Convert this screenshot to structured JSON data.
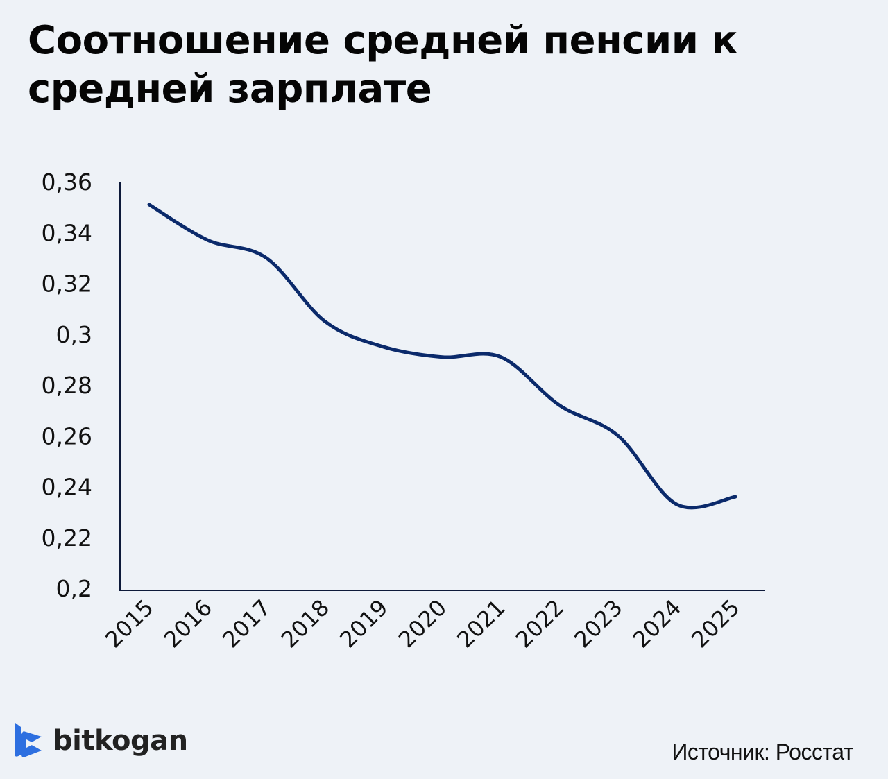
{
  "title": "Соотношение средней пенсии к средней зарплате",
  "source": "Источник: Росстат",
  "brand": {
    "name": "bitkogan",
    "icon": "bitkogan-logo-icon",
    "color": "#2d6fe0"
  },
  "colors": {
    "line": "#0b2a6b",
    "axis": "#0d1a3a",
    "background": "#eef2f7"
  },
  "chart_data": {
    "type": "line",
    "title": "Соотношение средней пенсии к средней зарплате",
    "xlabel": "",
    "ylabel": "",
    "categories": [
      "2015",
      "2016",
      "2017",
      "2018",
      "2019",
      "2020",
      "2021",
      "2022",
      "2023",
      "2024",
      "2025"
    ],
    "series": [
      {
        "name": "Соотношение средней пенсии к средней зарплате",
        "values": [
          0.351,
          0.337,
          0.33,
          0.305,
          0.295,
          0.291,
          0.291,
          0.272,
          0.26,
          0.233,
          0.236
        ]
      }
    ],
    "ylim": [
      0.2,
      0.36
    ],
    "yticks": [
      "0,36",
      "0,34",
      "0,32",
      "0,3",
      "0,28",
      "0,26",
      "0,24",
      "0,22",
      "0,2"
    ],
    "ytick_values": [
      0.36,
      0.34,
      0.32,
      0.3,
      0.28,
      0.26,
      0.24,
      0.22,
      0.2
    ],
    "grid": false,
    "legend": "none",
    "smooth": true,
    "x_tick_rotation": -45
  }
}
